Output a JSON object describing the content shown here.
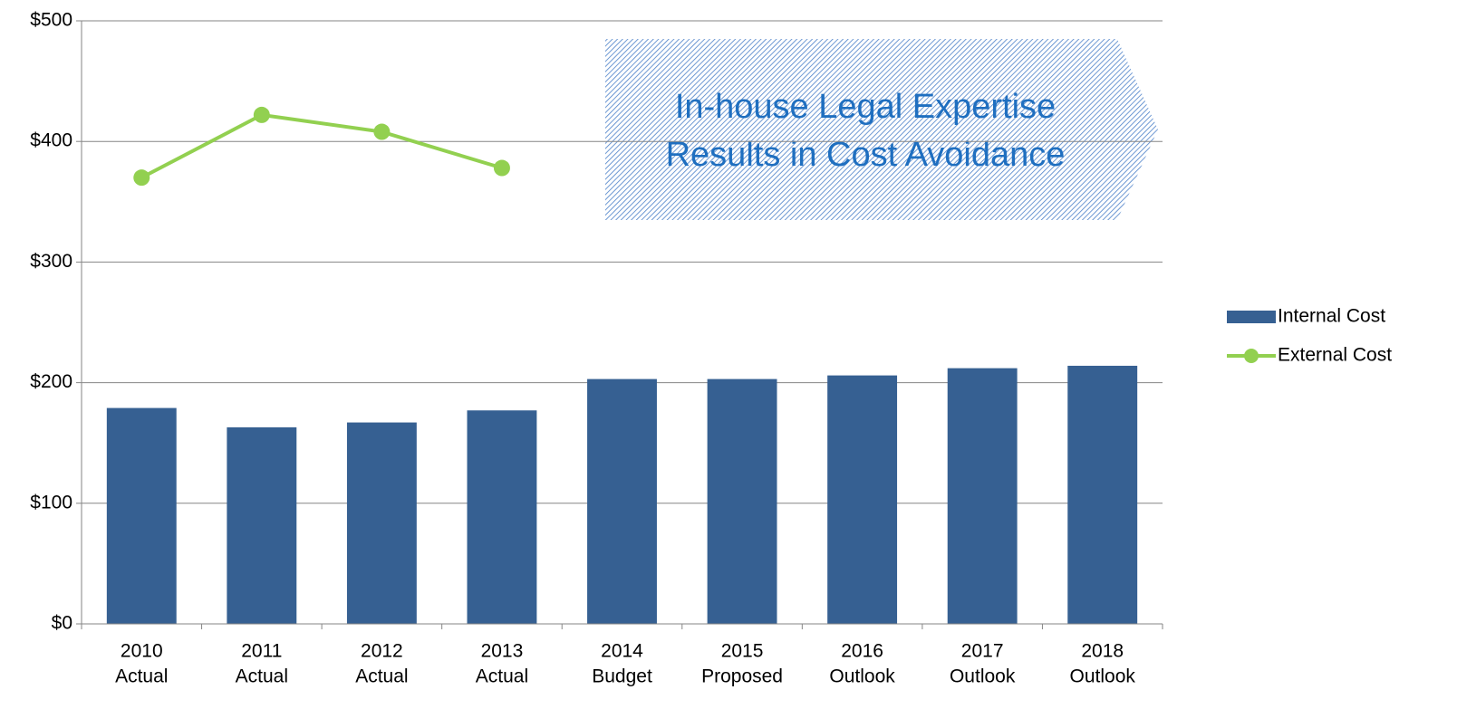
{
  "chart_data": {
    "type": "bar-line",
    "categories": [
      [
        "2010",
        "Actual"
      ],
      [
        "2011",
        "Actual"
      ],
      [
        "2012",
        "Actual"
      ],
      [
        "2013",
        "Actual"
      ],
      [
        "2014",
        "Budget"
      ],
      [
        "2015",
        "Proposed"
      ],
      [
        "2016",
        "Outlook"
      ],
      [
        "2017",
        "Outlook"
      ],
      [
        "2018",
        "Outlook"
      ]
    ],
    "series": [
      {
        "name": "Internal Cost",
        "type": "bar",
        "color": "#366092",
        "values": [
          179,
          163,
          167,
          177,
          203,
          203,
          206,
          212,
          214
        ]
      },
      {
        "name": "External Cost",
        "type": "line",
        "color": "#92d050",
        "values": [
          370,
          422,
          408,
          378,
          null,
          null,
          null,
          null,
          null
        ]
      }
    ],
    "ylim": [
      0,
      500
    ],
    "yticks": [
      {
        "value": 0,
        "label": "$0"
      },
      {
        "value": 100,
        "label": "$100"
      },
      {
        "value": 200,
        "label": "$200"
      },
      {
        "value": 300,
        "label": "$300"
      },
      {
        "value": 400,
        "label": "$400"
      },
      {
        "value": 500,
        "label": "$500"
      }
    ],
    "grid": true,
    "legend": "right",
    "annotation": [
      "In-house Legal Expertise",
      "Results in Cost Avoidance"
    ]
  }
}
